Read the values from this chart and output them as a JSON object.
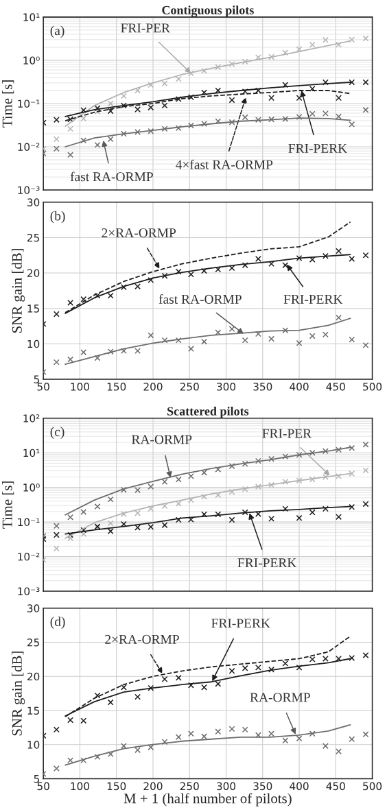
{
  "chart_data": [
    {
      "type": "scatter",
      "title": "Contiguous pilots",
      "ylabel": "Time [s]",
      "log": "y",
      "grid": true,
      "tick_labels": "y",
      "xlim": [
        50,
        500
      ],
      "xticks": [
        50,
        100,
        150,
        200,
        250,
        300,
        350,
        400,
        450,
        500
      ],
      "ylim": [
        0.001,
        10
      ],
      "yticks": [
        {
          "value": 0.001,
          "label": "10⁻³"
        },
        {
          "value": 0.01,
          "label": "10⁻²"
        },
        {
          "value": 0.1,
          "label": "10⁻¹"
        },
        {
          "value": 1,
          "label": "10⁰"
        },
        {
          "value": 10,
          "label": "10¹"
        }
      ],
      "x": [
        50,
        68,
        87,
        105,
        124,
        142,
        160,
        179,
        197,
        216,
        235,
        252,
        270,
        289,
        308,
        326,
        344,
        362,
        381,
        400,
        418,
        436,
        454,
        472,
        491
      ],
      "series": [
        {
          "marker": "cross",
          "color": "#b4b4b4",
          "values": [
            0.009,
            0.015,
            0.026,
            0.045,
            0.065,
            0.1,
            0.15,
            0.2,
            0.27,
            0.29,
            0.37,
            0.5,
            0.57,
            0.7,
            0.82,
            0.93,
            1.17,
            1.2,
            1.5,
            1.8,
            2.3,
            2.95,
            2.3,
            3.0,
            3.2
          ]
        },
        {
          "marker": "cross",
          "color": "#1e1e1e",
          "values": [
            0.036,
            0.042,
            0.043,
            0.07,
            0.078,
            0.067,
            0.09,
            0.073,
            0.081,
            0.09,
            0.127,
            0.14,
            0.18,
            0.2,
            0.12,
            0.19,
            0.2,
            0.135,
            0.27,
            0.135,
            0.22,
            0.31,
            0.135,
            0.31,
            0.31
          ]
        },
        {
          "marker": "cross",
          "color": "#6e6e6e",
          "values": [
            0.007,
            0.009,
            0.0065,
            0.014,
            0.011,
            0.015,
            0.02,
            0.022,
            0.023,
            0.026,
            0.027,
            0.031,
            0.034,
            0.039,
            0.037,
            0.048,
            0.042,
            0.043,
            0.044,
            0.049,
            0.058,
            0.059,
            0.05,
            0.033,
            0.071
          ]
        },
        {
          "type": "line",
          "color": "#b4b4b4",
          "x": [
            80,
            120,
            160,
            200,
            240,
            280,
            320,
            360,
            400,
            440,
            470
          ],
          "values": [
            0.03,
            0.09,
            0.18,
            0.3,
            0.47,
            0.65,
            0.88,
            1.17,
            1.6,
            2.2,
            2.8
          ]
        },
        {
          "type": "line",
          "color": "#1e1e1e",
          "x": [
            80,
            120,
            160,
            200,
            240,
            280,
            320,
            360,
            400,
            440,
            470
          ],
          "values": [
            0.05,
            0.072,
            0.09,
            0.11,
            0.14,
            0.17,
            0.2,
            0.23,
            0.26,
            0.29,
            0.31
          ]
        },
        {
          "type": "line",
          "color": "#1e1e1e",
          "line_style": "dashed",
          "x": [
            80,
            120,
            160,
            200,
            240,
            280,
            320,
            360,
            400,
            440,
            470
          ],
          "values": [
            0.04,
            0.063,
            0.085,
            0.1,
            0.13,
            0.15,
            0.165,
            0.18,
            0.2,
            0.2,
            0.17
          ]
        },
        {
          "type": "line",
          "color": "#6e6e6e",
          "x": [
            80,
            120,
            160,
            200,
            240,
            280,
            320,
            360,
            400,
            440,
            470
          ],
          "values": [
            0.01,
            0.016,
            0.02,
            0.024,
            0.029,
            0.034,
            0.039,
            0.042,
            0.046,
            0.045,
            0.041
          ]
        }
      ],
      "annotations": [
        "(a)",
        {
          "text": "FRI-PER",
          "x": 252,
          "y": 0.5
        },
        {
          "text": "FRI-PERK",
          "x": 403,
          "y": 0.2
        },
        {
          "text": "4×fast RA-ORMP",
          "x": 327,
          "y": 0.14
        },
        {
          "text": "fast RA-ORMP",
          "x": 132,
          "y": 0.014
        }
      ]
    },
    {
      "type": "scatter",
      "ylabel": "SNR gain [dB]",
      "grid": true,
      "xlim": [
        50,
        500
      ],
      "xticks": [
        50,
        100,
        150,
        200,
        250,
        300,
        350,
        400,
        450,
        500
      ],
      "ylim": [
        5,
        30
      ],
      "yticks": [
        5,
        10,
        15,
        20,
        25,
        30
      ],
      "x": [
        50,
        68,
        87,
        105,
        124,
        142,
        160,
        179,
        197,
        216,
        235,
        252,
        270,
        289,
        308,
        326,
        344,
        362,
        381,
        400,
        418,
        436,
        454,
        472,
        491
      ],
      "series": [
        {
          "marker": "cross",
          "color": "#1e1e1e",
          "values": [
            12.8,
            14.2,
            15.8,
            16.3,
            16.8,
            16.8,
            18,
            18.1,
            19,
            19.6,
            20.2,
            19.8,
            20.3,
            20.5,
            20.7,
            21.1,
            22,
            21.3,
            21.1,
            22.1,
            21.9,
            22.4,
            23.1,
            22,
            22.5
          ]
        },
        {
          "marker": "cross",
          "color": "#6e6e6e",
          "values": [
            6,
            7.4,
            7.8,
            8.8,
            8,
            8.9,
            9,
            9,
            11.2,
            10.5,
            10.5,
            9.3,
            10.3,
            11.6,
            12.1,
            10.5,
            11.4,
            10.7,
            11.9,
            10.1,
            11.1,
            11.3,
            13.7,
            10.6,
            9.8
          ]
        },
        {
          "type": "line",
          "color": "#1e1e1e",
          "x": [
            80,
            120,
            160,
            200,
            240,
            280,
            320,
            360,
            400,
            440,
            470
          ],
          "values": [
            14.3,
            16.5,
            18.1,
            19.3,
            20.1,
            20.7,
            21.2,
            21.6,
            22.1,
            22.4,
            22.6
          ]
        },
        {
          "type": "line",
          "color": "#1e1e1e",
          "line_style": "dashed",
          "x": [
            80,
            120,
            160,
            200,
            240,
            280,
            320,
            360,
            400,
            440,
            470
          ],
          "values": [
            14.4,
            16.9,
            18.8,
            20.2,
            21.3,
            22.1,
            22.8,
            23.4,
            23.7,
            25.1,
            27.2
          ]
        },
        {
          "type": "line",
          "color": "#6e6e6e",
          "x": [
            80,
            120,
            160,
            200,
            240,
            280,
            320,
            360,
            400,
            440,
            470
          ],
          "values": [
            7.1,
            8.2,
            9.3,
            10.1,
            10.7,
            11.2,
            11.5,
            11.8,
            11.9,
            12.6,
            13.6
          ]
        }
      ],
      "annotations": [
        "(b)",
        {
          "text": "2×RA-ORMP",
          "x": 209,
          "y": 20.6
        },
        {
          "text": "FRI-PERK",
          "x": 383,
          "y": 21.2
        },
        {
          "text": "fast RA-ORMP",
          "x": 324,
          "y": 11.4
        }
      ]
    },
    {
      "type": "scatter",
      "title": "Scattered pilots",
      "ylabel": "Time [s]",
      "log": "y",
      "grid": true,
      "tick_labels": "y",
      "xlim": [
        50,
        500
      ],
      "xticks": [
        50,
        100,
        150,
        200,
        250,
        300,
        350,
        400,
        450,
        500
      ],
      "ylim": [
        0.001,
        100
      ],
      "yticks": [
        {
          "value": 0.001,
          "label": "10⁻³"
        },
        {
          "value": 0.01,
          "label": "10⁻²"
        },
        {
          "value": 0.1,
          "label": "10⁻¹"
        },
        {
          "value": 1,
          "label": "10⁰"
        },
        {
          "value": 10,
          "label": "10¹"
        },
        {
          "value": 100,
          "label": "10²"
        }
      ],
      "x": [
        50,
        68,
        87,
        105,
        124,
        142,
        160,
        179,
        197,
        216,
        235,
        252,
        270,
        289,
        308,
        326,
        344,
        362,
        381,
        400,
        418,
        436,
        454,
        472,
        491
      ],
      "series": [
        {
          "marker": "cross",
          "color": "#6e6e6e",
          "values": [
            0.039,
            0.077,
            0.137,
            0.195,
            0.28,
            0.45,
            0.85,
            0.83,
            1.05,
            1.45,
            1.7,
            2.1,
            2.66,
            3.3,
            4.1,
            4.8,
            5.8,
            6.6,
            7.8,
            8.7,
            10,
            11.2,
            12.2,
            13.7,
            17.3
          ]
        },
        {
          "marker": "cross",
          "color": "#b4b4b4",
          "values": [
            0.008,
            0.017,
            0.034,
            0.045,
            0.069,
            0.092,
            0.17,
            0.18,
            0.24,
            0.29,
            0.34,
            0.43,
            0.54,
            0.6,
            0.74,
            0.89,
            1.05,
            1.17,
            1.45,
            1.57,
            1.7,
            2.0,
            2.1,
            2.5,
            3.1
          ]
        },
        {
          "marker": "cross",
          "color": "#1e1e1e",
          "values": [
            0.032,
            0.042,
            0.042,
            0.058,
            0.074,
            0.054,
            0.087,
            0.069,
            0.072,
            0.081,
            0.115,
            0.117,
            0.166,
            0.166,
            0.115,
            0.19,
            0.17,
            0.124,
            0.24,
            0.13,
            0.19,
            0.24,
            0.14,
            0.27,
            0.33
          ]
        },
        {
          "type": "line",
          "color": "#6e6e6e",
          "x": [
            80,
            120,
            160,
            200,
            240,
            280,
            320,
            360,
            400,
            440,
            470
          ],
          "values": [
            0.16,
            0.43,
            0.9,
            1.5,
            2.4,
            3.5,
            4.8,
            6.3,
            8.7,
            11.3,
            14.3
          ]
        },
        {
          "type": "line",
          "color": "#b4b4b4",
          "x": [
            80,
            120,
            160,
            200,
            240,
            280,
            320,
            360,
            400,
            440,
            470
          ],
          "values": [
            0.034,
            0.095,
            0.18,
            0.29,
            0.43,
            0.65,
            0.89,
            1.19,
            1.57,
            2.06,
            2.5
          ]
        },
        {
          "type": "line",
          "color": "#1e1e1e",
          "x": [
            80,
            120,
            160,
            200,
            240,
            280,
            320,
            360,
            400,
            440,
            470
          ],
          "values": [
            0.045,
            0.059,
            0.074,
            0.095,
            0.13,
            0.15,
            0.18,
            0.21,
            0.23,
            0.26,
            0.28
          ]
        }
      ],
      "annotations": [
        "(c)",
        {
          "text": "RA-ORMP",
          "x": 224,
          "y": 1.9
        },
        {
          "text": "FRI-PER",
          "x": 442,
          "y": 2.2
        },
        {
          "text": "FRI-PERK",
          "x": 332,
          "y": 0.18
        }
      ]
    },
    {
      "type": "scatter",
      "ylabel": "SNR gain [dB]",
      "xlabel": "M + 1 (half number of pilots)",
      "grid": true,
      "xlim": [
        50,
        500
      ],
      "xticks": [
        50,
        100,
        150,
        200,
        250,
        300,
        350,
        400,
        450,
        500
      ],
      "ylim": [
        5,
        30
      ],
      "yticks": [
        5,
        10,
        15,
        20,
        25,
        30
      ],
      "x": [
        50,
        68,
        87,
        105,
        124,
        142,
        160,
        179,
        197,
        216,
        235,
        252,
        270,
        289,
        308,
        326,
        344,
        362,
        381,
        400,
        418,
        436,
        454,
        472,
        491
      ],
      "series": [
        {
          "marker": "cross",
          "color": "#1e1e1e",
          "values": [
            11.3,
            12.2,
            13.6,
            13.5,
            17.2,
            16.2,
            18.4,
            17,
            18.3,
            19.6,
            19.8,
            18.7,
            18.4,
            18.9,
            20.8,
            21.2,
            21.3,
            21,
            21.9,
            21.3,
            22.5,
            22.6,
            22.6,
            22.7,
            23.1
          ]
        },
        {
          "marker": "cross",
          "color": "#6e6e6e",
          "values": [
            5.7,
            6.5,
            7.7,
            7.7,
            8.2,
            8.6,
            9.8,
            9.2,
            9.6,
            10.4,
            11.1,
            11.6,
            11.2,
            11.9,
            12.3,
            12.2,
            11.4,
            11.6,
            10.6,
            10.9,
            11.6,
            9.8,
            9,
            10.8,
            11.5
          ]
        },
        {
          "type": "line",
          "color": "#1e1e1e",
          "x": [
            80,
            120,
            160,
            200,
            240,
            280,
            320,
            360,
            400,
            440,
            470
          ],
          "values": [
            14.2,
            16.3,
            17.7,
            18.3,
            18.8,
            19.2,
            20.1,
            20.9,
            21.5,
            22,
            22.6
          ]
        },
        {
          "type": "line",
          "color": "#1e1e1e",
          "line_style": "dashed",
          "x": [
            80,
            120,
            160,
            200,
            240,
            280,
            320,
            360,
            400,
            440,
            470
          ],
          "values": [
            14.1,
            16.8,
            18.8,
            20,
            20.8,
            21.4,
            21.8,
            22.2,
            22.6,
            23.6,
            25.9
          ]
        },
        {
          "type": "line",
          "color": "#6e6e6e",
          "x": [
            80,
            120,
            160,
            200,
            240,
            280,
            320,
            360,
            400,
            440,
            470
          ],
          "values": [
            7,
            8.3,
            9.4,
            10,
            10.5,
            10.8,
            11.1,
            11.1,
            11.4,
            12,
            12.9
          ]
        }
      ],
      "annotations": [
        "(d)",
        {
          "text": "2×RA-ORMP",
          "x": 213,
          "y": 20.4
        },
        {
          "text": "FRI-PERK",
          "x": 281,
          "y": 19.3
        },
        {
          "text": "RA-ORMP",
          "x": 395,
          "y": 11.5
        }
      ]
    }
  ]
}
